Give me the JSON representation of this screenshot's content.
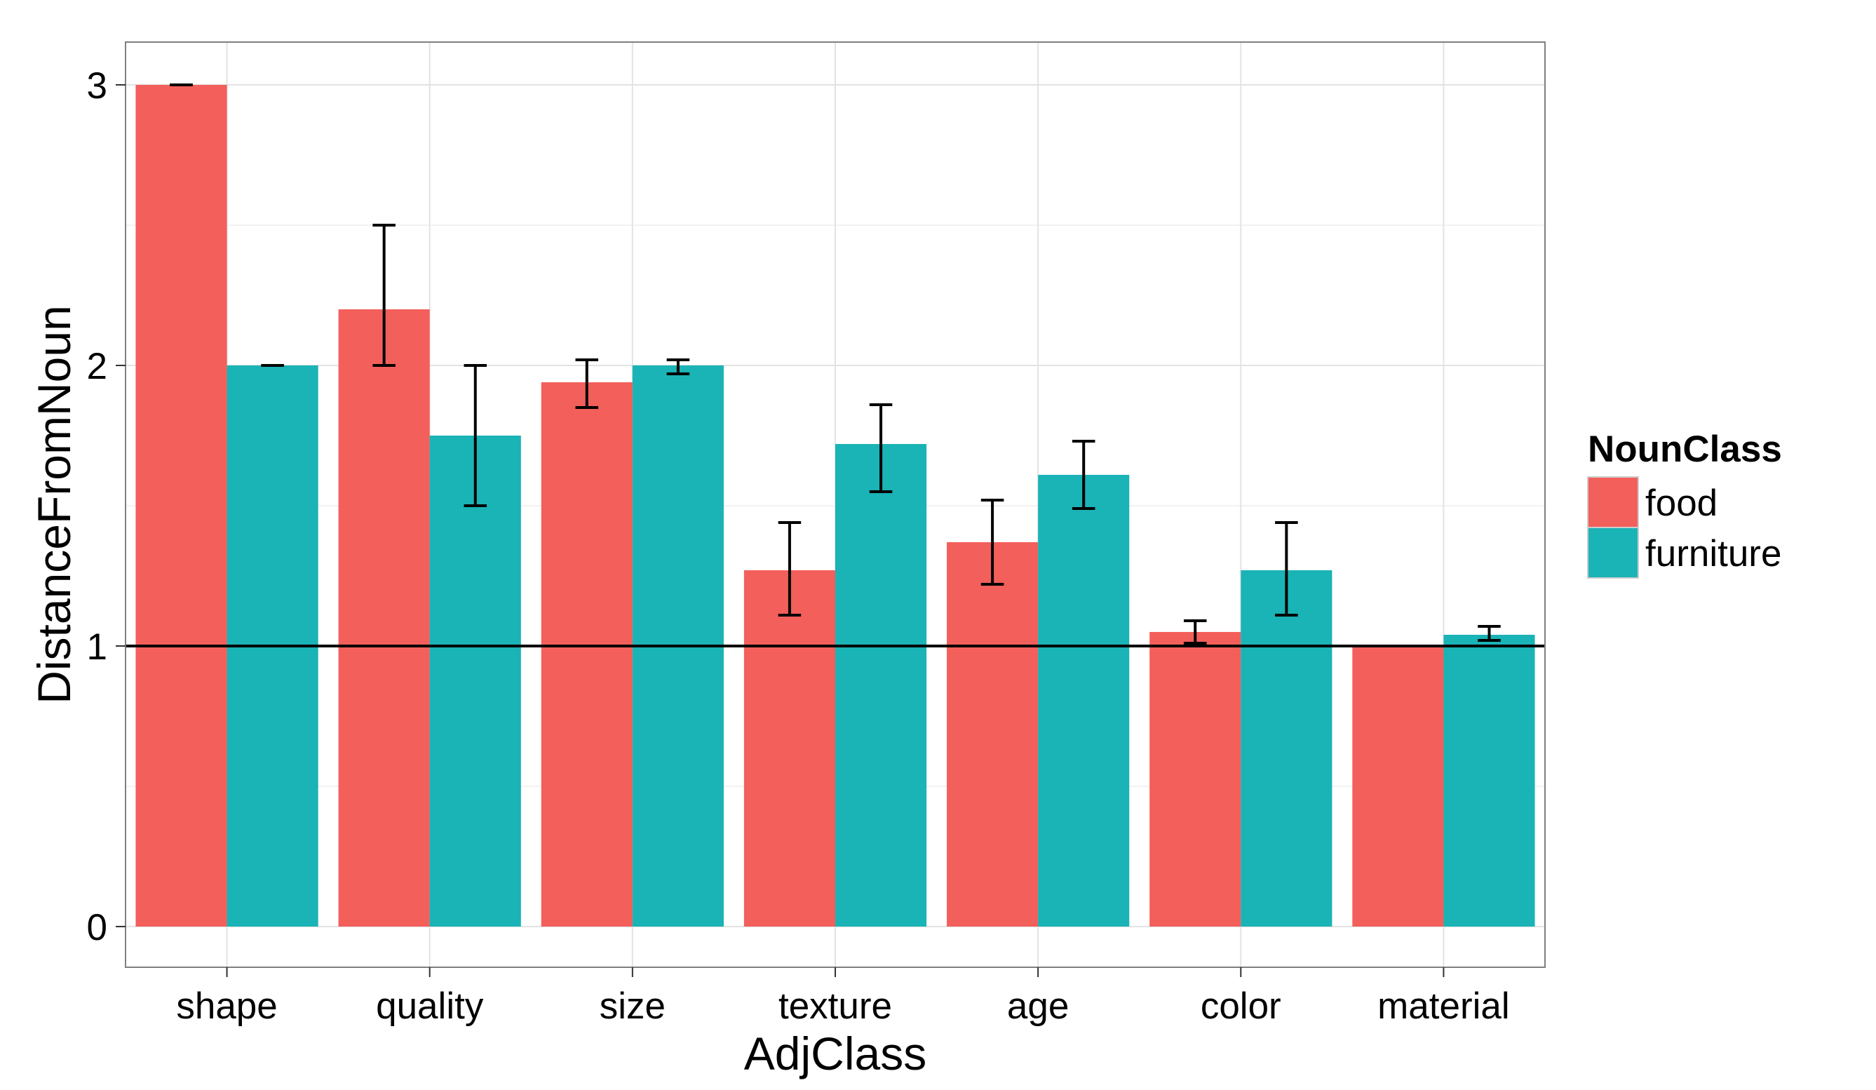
{
  "chart_data": {
    "type": "bar",
    "xlabel": "AdjClass",
    "ylabel": "DistanceFromNoun",
    "categories": [
      "shape",
      "quality",
      "size",
      "texture",
      "age",
      "color",
      "material"
    ],
    "series": [
      {
        "name": "food",
        "color": "#F35F5B",
        "values": [
          3.0,
          2.2,
          1.94,
          1.27,
          1.37,
          1.05,
          1.0
        ],
        "error_low": [
          3.0,
          2.0,
          1.85,
          1.11,
          1.22,
          1.01,
          1.0
        ],
        "error_high": [
          3.0,
          2.5,
          2.02,
          1.44,
          1.52,
          1.09,
          1.0
        ]
      },
      {
        "name": "furniture",
        "color": "#1AB3B6",
        "values": [
          2.0,
          1.75,
          2.0,
          1.72,
          1.61,
          1.27,
          1.04
        ],
        "error_low": [
          2.0,
          1.5,
          1.97,
          1.55,
          1.49,
          1.11,
          1.02
        ],
        "error_high": [
          2.0,
          2.0,
          2.02,
          1.86,
          1.73,
          1.44,
          1.07
        ]
      }
    ],
    "yticks": [
      0,
      1,
      2,
      3
    ],
    "ylim": [
      -0.15,
      3.15
    ],
    "reference_line": 1,
    "grid": true,
    "legend": {
      "title": "NounClass",
      "position": "right"
    }
  }
}
